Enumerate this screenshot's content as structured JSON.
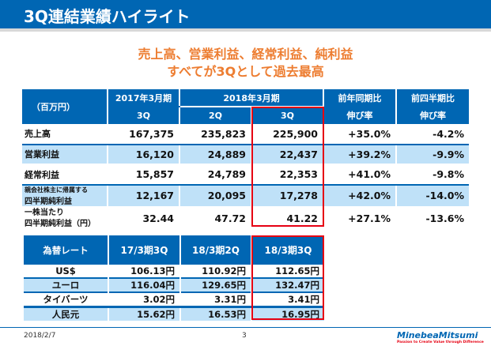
{
  "title": "3Q連結業績ハイライト",
  "headline": [
    "売上高、営業利益、経常利益、純利益",
    "すべてが3Qとして過去最高"
  ],
  "results": {
    "unit": "（百万円）",
    "period_2017": "2017年3月期",
    "period_2018": "2018年3月期",
    "col_2017_3q": "3Q",
    "col_2018_2q": "2Q",
    "col_2018_3q": "3Q",
    "yoy": [
      "前年同期比",
      "伸び率"
    ],
    "qoq": [
      "前四半期比",
      "伸び率"
    ],
    "rows": [
      {
        "label": "売上高",
        "v1": "167,375",
        "v2": "235,823",
        "v3": "225,900",
        "yoy": "+35.0%",
        "qoq": "-4.2%"
      },
      {
        "label": "営業利益",
        "v1": "16,120",
        "v2": "24,889",
        "v3": "22,437",
        "yoy": "+39.2%",
        "qoq": "-9.9%"
      },
      {
        "label": "経常利益",
        "v1": "15,857",
        "v2": "24,789",
        "v3": "22,353",
        "yoy": "+41.0%",
        "qoq": "-9.8%"
      },
      {
        "label": "親会社株主に帰属する",
        "label2": "四半期純利益",
        "v1": "12,167",
        "v2": "20,095",
        "v3": "17,278",
        "yoy": "+42.0%",
        "qoq": "-14.0%"
      },
      {
        "label": "一株当たり",
        "label2": "四半期純利益（円）",
        "v1": "32.44",
        "v2": "47.72",
        "v3": "41.22",
        "yoy": "+27.1%",
        "qoq": "-13.6%"
      }
    ]
  },
  "fx": {
    "header": [
      "為替レート",
      "17/3期3Q",
      "18/3期2Q",
      "18/3期3Q"
    ],
    "rows": [
      [
        "US$",
        "106.13円",
        "110.92円",
        "112.65円"
      ],
      [
        "ユーロ",
        "116.04円",
        "129.65円",
        "132.47円"
      ],
      [
        "タイバーツ",
        "3.02円",
        "3.31円",
        "3.41円"
      ],
      [
        "人民元",
        "15.62円",
        "16.53円",
        "16.95円"
      ]
    ]
  },
  "footer": {
    "date": "2018/2/7",
    "page": "3",
    "logo": "MinebeaMitsumi",
    "tagline": "Passion to Create Value through Difference"
  },
  "colors": {
    "header_blue": "#0066b3",
    "row_alt": "#bfe1f8",
    "highlight": "#e60012",
    "headline": "#ed7d31"
  }
}
